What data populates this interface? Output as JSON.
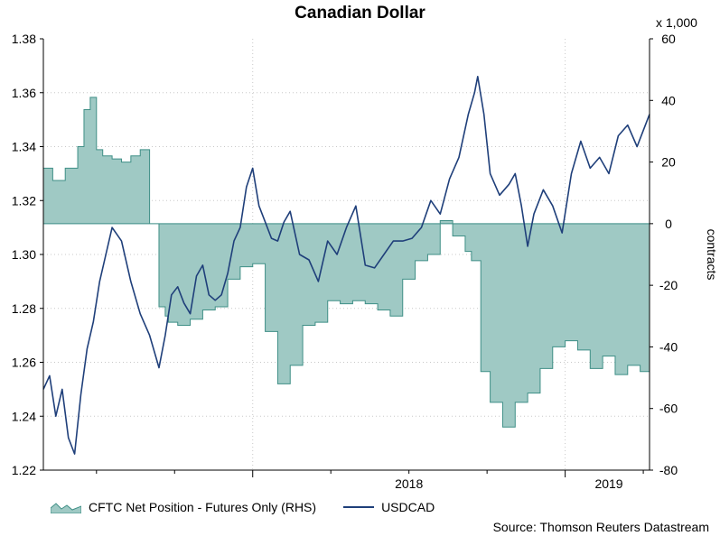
{
  "chart_data": {
    "type": "line+area",
    "title": "Canadian Dollar",
    "x_tick_labels": [
      "2018",
      "2019"
    ],
    "left_axis": {
      "ylim": [
        1.22,
        1.38
      ],
      "ticks": [
        "1.38",
        "1.36",
        "1.34",
        "1.32",
        "1.30",
        "1.28",
        "1.26",
        "1.24",
        "1.22"
      ]
    },
    "right_axis": {
      "label": "contracts",
      "multiplier_label": "x 1,000",
      "ylim": [
        -80,
        60
      ],
      "ticks": [
        "60",
        "40",
        "20",
        "0",
        "-20",
        "-40",
        "-60",
        "-80"
      ]
    },
    "series": [
      {
        "name": "CFTC Net Position - Futures Only (RHS)",
        "type": "area",
        "axis": "right",
        "color": "#9fc9c4",
        "edge_color": "#3f8f86",
        "x": [
          2017.33,
          2017.36,
          2017.4,
          2017.44,
          2017.46,
          2017.48,
          2017.5,
          2017.52,
          2017.55,
          2017.58,
          2017.61,
          2017.64,
          2017.67,
          2017.7,
          2017.72,
          2017.73,
          2017.76,
          2017.8,
          2017.84,
          2017.88,
          2017.92,
          2017.96,
          2018.0,
          2018.04,
          2018.08,
          2018.12,
          2018.16,
          2018.2,
          2018.24,
          2018.28,
          2018.32,
          2018.36,
          2018.4,
          2018.44,
          2018.48,
          2018.52,
          2018.56,
          2018.6,
          2018.64,
          2018.68,
          2018.7,
          2018.73,
          2018.76,
          2018.8,
          2018.84,
          2018.88,
          2018.92,
          2018.96,
          2019.0,
          2019.04,
          2019.08,
          2019.12,
          2019.16,
          2019.2,
          2019.24,
          2019.27
        ],
        "values": [
          18,
          14,
          18,
          25,
          37,
          41,
          24,
          22,
          21,
          20,
          22,
          24,
          0,
          -27,
          -30,
          -32,
          -33,
          -31,
          -28,
          -27,
          -18,
          -14,
          -13,
          -35,
          -52,
          -46,
          -33,
          -32,
          -25,
          -26,
          -25,
          -26,
          -28,
          -30,
          -18,
          -12,
          -10,
          1,
          -4,
          -9,
          -12,
          -48,
          -58,
          -66,
          -58,
          -55,
          -47,
          -40,
          -38,
          -41,
          -47,
          -43,
          -49,
          -46,
          -48,
          -42
        ]
      },
      {
        "name": "USDCAD",
        "type": "line",
        "axis": "left",
        "color": "#1f3f7a",
        "x": [
          2017.33,
          2017.35,
          2017.37,
          2017.39,
          2017.41,
          2017.43,
          2017.45,
          2017.47,
          2017.49,
          2017.51,
          2017.53,
          2017.55,
          2017.58,
          2017.61,
          2017.64,
          2017.67,
          2017.7,
          2017.72,
          2017.74,
          2017.76,
          2017.78,
          2017.8,
          2017.82,
          2017.84,
          2017.86,
          2017.88,
          2017.9,
          2017.92,
          2017.94,
          2017.96,
          2017.98,
          2018.0,
          2018.02,
          2018.04,
          2018.06,
          2018.08,
          2018.1,
          2018.12,
          2018.15,
          2018.18,
          2018.21,
          2018.24,
          2018.27,
          2018.3,
          2018.33,
          2018.36,
          2018.39,
          2018.42,
          2018.45,
          2018.48,
          2018.51,
          2018.54,
          2018.57,
          2018.6,
          2018.63,
          2018.66,
          2018.69,
          2018.71,
          2018.72,
          2018.74,
          2018.76,
          2018.79,
          2018.82,
          2018.84,
          2018.86,
          2018.88,
          2018.9,
          2018.93,
          2018.96,
          2018.99,
          2019.02,
          2019.05,
          2019.08,
          2019.11,
          2019.14,
          2019.17,
          2019.2,
          2019.23,
          2019.25,
          2019.27
        ],
        "values": [
          1.25,
          1.255,
          1.24,
          1.25,
          1.232,
          1.226,
          1.248,
          1.265,
          1.275,
          1.29,
          1.3,
          1.31,
          1.305,
          1.29,
          1.278,
          1.27,
          1.258,
          1.27,
          1.285,
          1.288,
          1.282,
          1.278,
          1.292,
          1.296,
          1.285,
          1.283,
          1.285,
          1.293,
          1.305,
          1.31,
          1.325,
          1.332,
          1.318,
          1.312,
          1.306,
          1.305,
          1.312,
          1.316,
          1.3,
          1.298,
          1.29,
          1.305,
          1.3,
          1.31,
          1.318,
          1.296,
          1.295,
          1.3,
          1.305,
          1.305,
          1.306,
          1.31,
          1.32,
          1.315,
          1.328,
          1.336,
          1.352,
          1.36,
          1.366,
          1.352,
          1.33,
          1.322,
          1.326,
          1.33,
          1.318,
          1.303,
          1.315,
          1.324,
          1.318,
          1.308,
          1.33,
          1.342,
          1.332,
          1.336,
          1.33,
          1.344,
          1.348,
          1.34,
          1.346,
          1.352
        ]
      }
    ],
    "legend": [
      "CFTC Net Position - Futures Only (RHS)",
      "USDCAD"
    ],
    "legend_position": "bottom-left",
    "grid": true,
    "source": "Source: Thomson Reuters Datastream"
  }
}
